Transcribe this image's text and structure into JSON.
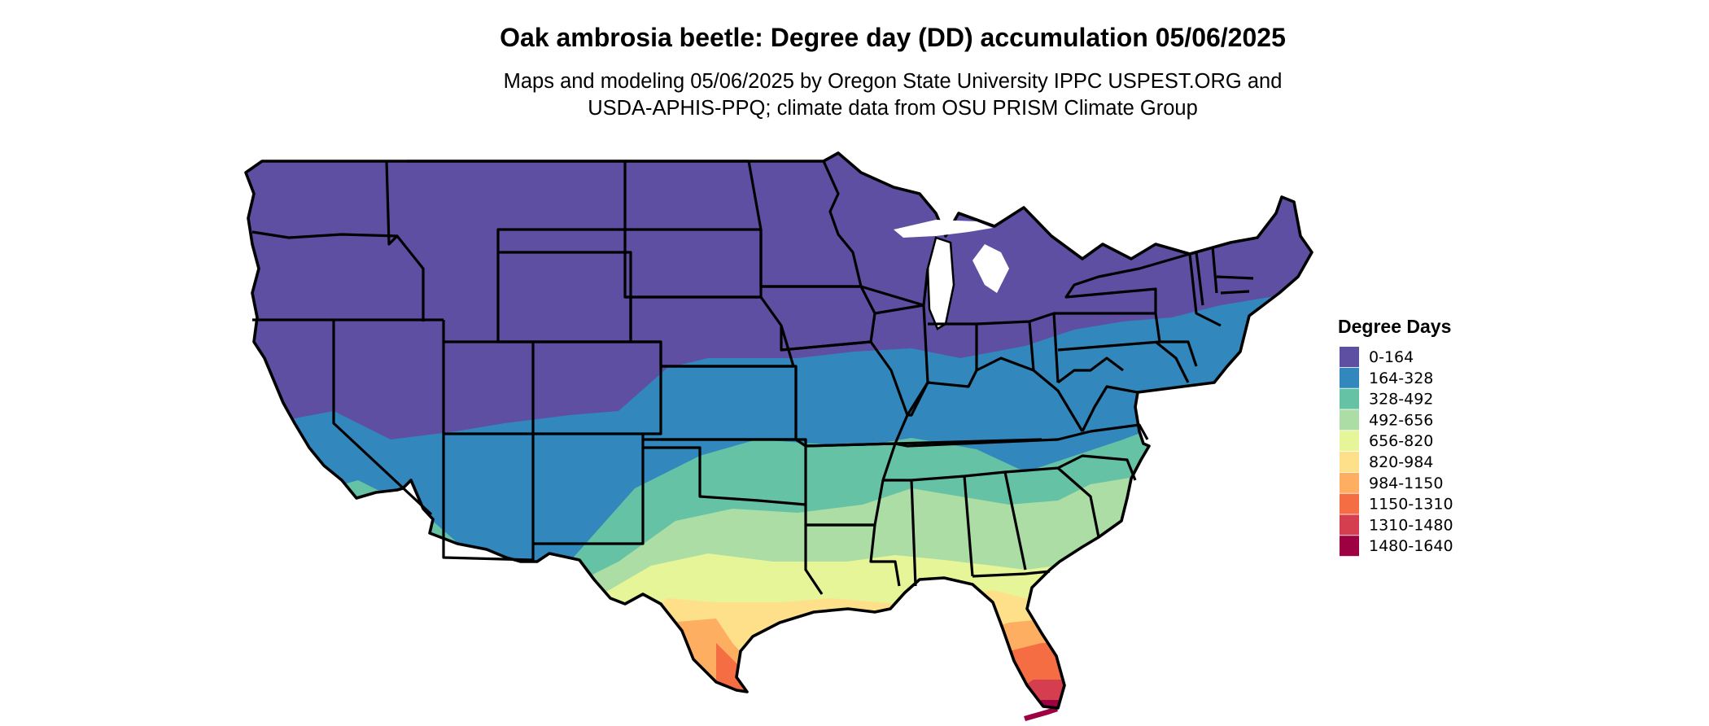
{
  "title": "Oak ambrosia beetle: Degree day (DD) accumulation 05/06/2025",
  "subtitle_line1": "Maps and modeling 05/06/2025 by Oregon State University IPPC USPEST.ORG and",
  "subtitle_line2": "USDA-APHIS-PPQ; climate data from OSU PRISM Climate Group",
  "legend": {
    "title": "Degree Days",
    "items": [
      {
        "label": "0-164",
        "color": "#5E4FA2"
      },
      {
        "label": "164-328",
        "color": "#3288BD"
      },
      {
        "label": "328-492",
        "color": "#66C2A5"
      },
      {
        "label": "492-656",
        "color": "#ABDDA4"
      },
      {
        "label": "656-820",
        "color": "#E6F598"
      },
      {
        "label": "820-984",
        "color": "#FEE08B"
      },
      {
        "label": "984-1150",
        "color": "#FDAE61"
      },
      {
        "label": "1150-1310",
        "color": "#F46D43"
      },
      {
        "label": "1310-1480",
        "color": "#D53E4F"
      },
      {
        "label": "1480-1640",
        "color": "#9E0142"
      }
    ]
  }
}
